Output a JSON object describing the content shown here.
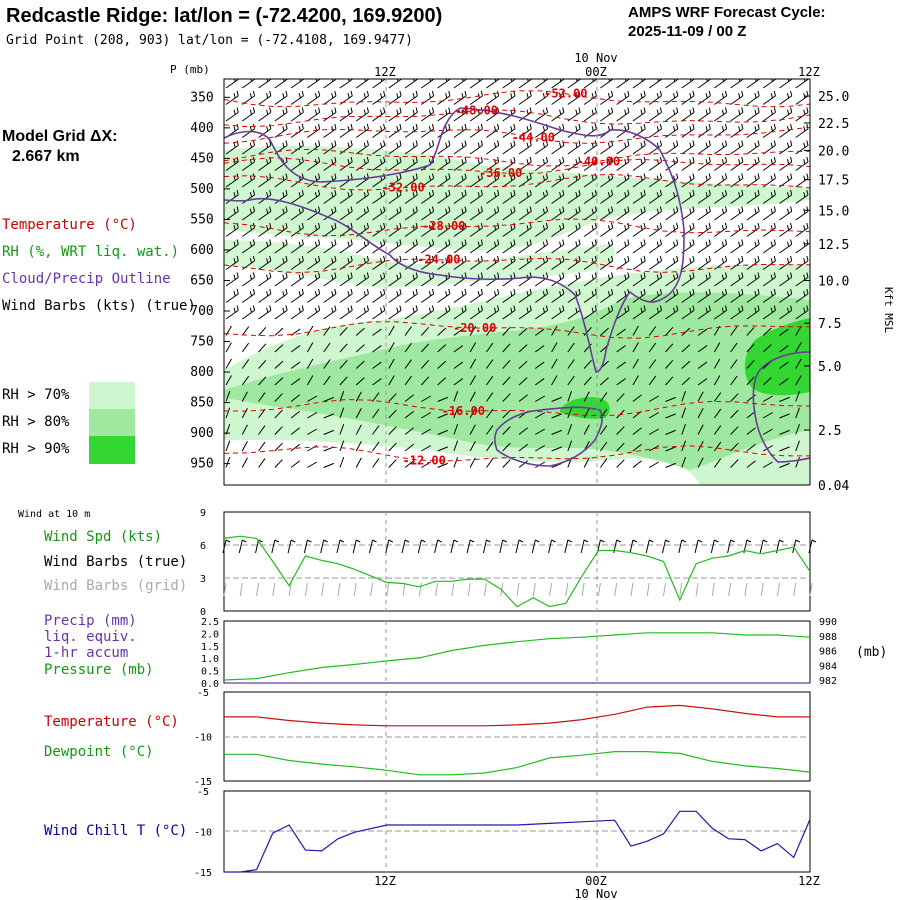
{
  "header": {
    "title": "Redcastle Ridge:  lat/lon = (-72.4200, 169.9200)",
    "subtitle": "Grid Point (208, 903) lat/lon = (-72.4108, 169.9477)",
    "cycle_line1": "AMPS WRF Forecast Cycle:",
    "cycle_line2": "2025-11-09 / 00  Z"
  },
  "left_panel": {
    "grid_label_line1": "Model Grid ΔX:",
    "grid_label_line2": "2.667 km",
    "legend_temperature": "Temperature (°C)",
    "legend_rh": "RH (%, WRT liq. wat.)",
    "legend_cloud": "Cloud/Precip Outline",
    "legend_wind": "Wind Barbs (kts) (true)",
    "rh_levels": [
      "RH > 70%",
      "RH > 80%",
      "RH > 90%"
    ],
    "wind_at_10m": "Wind at 10 m",
    "wind_spd": "Wind Spd (kts)",
    "wind_barbs_true": "Wind Barbs (true)",
    "wind_barbs_grid": "Wind Barbs (grid)",
    "precip_1": "Precip (mm)",
    "precip_2": "liq. equiv.",
    "precip_3": "1-hr accum",
    "pressure": "Pressure (mb)",
    "temperature2": "Temperature (°C)",
    "dewpoint": "Dewpoint (°C)",
    "windchill": "Wind Chill T (°C)"
  },
  "colors": {
    "rh70": "#cff7cf",
    "rh80": "#9fe89f",
    "rh90": "#33d633",
    "temp": "#e00000",
    "cloud": "#6a3a9a",
    "green": "#22bb22",
    "navy": "#1b1bb0",
    "gray": "#aaaaaa",
    "label_temp": "#cc0000",
    "label_green": "#119911",
    "label_purple": "#6633aa",
    "label_navy": "#000099"
  },
  "time_axis": {
    "top_date": "10 Nov",
    "bottom_date": "10 Nov",
    "ticks": [
      "12Z",
      "00Z",
      "12Z"
    ],
    "p_label": "P (mb)",
    "kft_label": "Kft MSL",
    "mb_unit": "(mb)"
  },
  "chart_data": [
    {
      "type": "heatmap",
      "name": "vertical cross-section",
      "x_hours": [
        0,
        36
      ],
      "ylim_mb": [
        985,
        320
      ],
      "pressure_levels": [
        350,
        400,
        450,
        500,
        550,
        600,
        650,
        700,
        750,
        800,
        850,
        900,
        950
      ],
      "kft_levels": [
        "25.0",
        "22.5",
        "20.0",
        "17.5",
        "15.0",
        "12.5",
        "10.0",
        "7.5",
        "5.0",
        "2.5",
        "0.04"
      ],
      "kft_pressure": [
        348,
        392,
        437,
        485,
        535,
        590,
        650,
        720,
        790,
        895,
        985
      ],
      "temperature_contours": [
        {
          "label": "-52.00",
          "hour": 21,
          "p": 344
        },
        {
          "label": "-48.00",
          "hour": 15.5,
          "p": 372
        },
        {
          "label": "-44.00",
          "hour": 19,
          "p": 416
        },
        {
          "label": "-40.00",
          "hour": 23,
          "p": 455
        },
        {
          "label": "-36.00",
          "hour": 17,
          "p": 474
        },
        {
          "label": "-32.00",
          "hour": 11,
          "p": 498
        },
        {
          "label": "-28.00",
          "hour": 13.5,
          "p": 561
        },
        {
          "label": "-24.00",
          "hour": 13.2,
          "p": 616
        },
        {
          "label": "-20.00",
          "hour": 15.4,
          "p": 728
        },
        {
          "label": "-16.00",
          "hour": 14.7,
          "p": 864
        },
        {
          "label": "-12.00",
          "hour": 12.3,
          "p": 945
        }
      ]
    },
    {
      "type": "line",
      "name": "wind speed 10 m",
      "ylim": [
        0,
        9
      ],
      "yticks": [
        "9",
        "6",
        "3",
        "0"
      ],
      "x": [
        0,
        1,
        2,
        3,
        4,
        5,
        6,
        7,
        8,
        9,
        10,
        11,
        12,
        13,
        14,
        15,
        16,
        17,
        18,
        19,
        20,
        21,
        22,
        23,
        24,
        25,
        26,
        27,
        28,
        29,
        30,
        31,
        32,
        33,
        34,
        35,
        36
      ],
      "values": [
        6.6,
        6.8,
        6.6,
        4.5,
        2.3,
        5.0,
        4.6,
        4.3,
        3.8,
        3.2,
        2.6,
        2.5,
        2.2,
        2.7,
        2.7,
        2.9,
        2.9,
        2.0,
        0.4,
        1.2,
        0.4,
        0.7,
        3.2,
        5.5,
        5.5,
        5.3,
        5.0,
        4.5,
        1.0,
        4.3,
        4.8,
        5.0,
        5.5,
        5.2,
        5.5,
        5.8,
        3.6
      ]
    },
    {
      "type": "line",
      "name": "pressure / precip",
      "left_axis": [
        "2.5",
        "2.0",
        "1.5",
        "1.0",
        "0.5",
        "0.0"
      ],
      "right_axis": [
        "990",
        "988",
        "986",
        "984",
        "982"
      ],
      "ylim_pressure": [
        981.6,
        990
      ],
      "x": [
        0,
        2,
        4,
        6,
        8,
        10,
        12,
        14,
        16,
        18,
        20,
        22,
        24,
        26,
        28,
        30,
        32,
        34,
        36
      ],
      "pressure": [
        982,
        982.2,
        983,
        983.7,
        984.1,
        984.6,
        985,
        986,
        986.7,
        987.2,
        987.6,
        987.8,
        988.1,
        988.4,
        988.4,
        988.4,
        988.1,
        988.1,
        987.8
      ],
      "precip": [
        0,
        0,
        0,
        0,
        0,
        0,
        0,
        0,
        0,
        0,
        0,
        0,
        0,
        0,
        0,
        0,
        0,
        0,
        0
      ]
    },
    {
      "type": "line",
      "name": "temperature and dewpoint",
      "ylim": [
        -15,
        -5
      ],
      "yticks": [
        "-5",
        "-10",
        "-15"
      ],
      "x": [
        0,
        2,
        4,
        6,
        8,
        10,
        12,
        14,
        16,
        18,
        20,
        22,
        24,
        26,
        28,
        30,
        32,
        34,
        36
      ],
      "series": [
        {
          "name": "Temperature",
          "values": [
            -7.8,
            -7.8,
            -8.2,
            -8.5,
            -8.7,
            -8.8,
            -8.8,
            -8.8,
            -8.8,
            -8.7,
            -8.5,
            -8.1,
            -7.5,
            -6.7,
            -6.5,
            -6.9,
            -7.4,
            -7.8,
            -7.8
          ]
        },
        {
          "name": "Dewpoint",
          "values": [
            -12.0,
            -12.0,
            -12.7,
            -13.1,
            -13.4,
            -13.8,
            -14.3,
            -14.3,
            -14.1,
            -13.5,
            -12.4,
            -12.1,
            -11.7,
            -11.7,
            -11.9,
            -12.8,
            -13.3,
            -13.6,
            -14.0
          ]
        }
      ]
    },
    {
      "type": "line",
      "name": "wind chill",
      "ylim": [
        -15,
        -5
      ],
      "yticks": [
        "-5",
        "-10",
        "-15"
      ],
      "x": [
        0,
        1,
        2,
        3,
        4,
        5,
        6,
        7,
        8,
        10,
        12,
        14,
        16,
        18,
        20,
        22,
        24,
        25,
        26,
        27,
        28,
        29,
        30,
        31,
        32,
        33,
        34,
        35,
        36
      ],
      "values": [
        -15,
        -15,
        -14.7,
        -10.2,
        -9.2,
        -12.3,
        -12.4,
        -10.9,
        -10.1,
        -9.2,
        -9.2,
        -9.2,
        -9.2,
        -9.2,
        -9.0,
        -8.8,
        -8.6,
        -11.8,
        -11.2,
        -10.3,
        -7.5,
        -7.5,
        -9.6,
        -10.9,
        -11.0,
        -12.4,
        -11.5,
        -13.2,
        -8.5
      ]
    }
  ]
}
